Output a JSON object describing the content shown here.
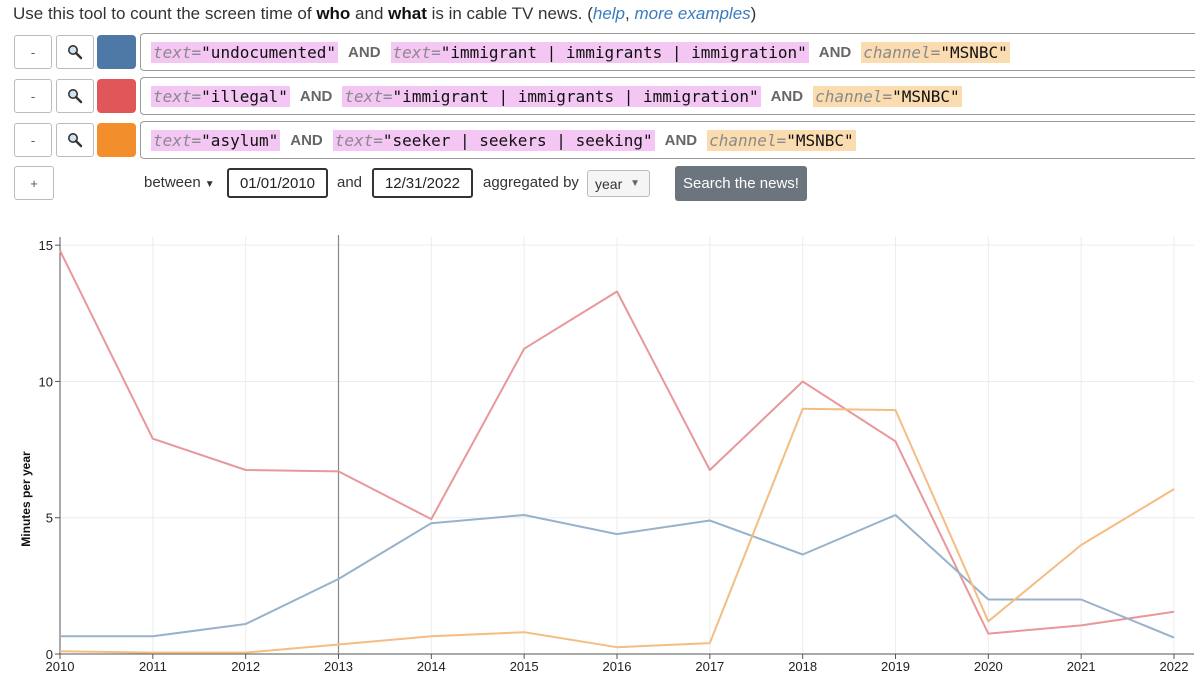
{
  "intro": {
    "prefix": "Use this tool to count the screen time of ",
    "who": "who",
    "middle1": " and ",
    "what": "what",
    "middle2": " is in cable TV news. (",
    "help_link": "help",
    "sep": ", ",
    "examples_link": "more examples",
    "suffix": ")"
  },
  "controls": {
    "minus": "-",
    "plus": "+",
    "and_op": "AND"
  },
  "queries": [
    {
      "color": "#4e79a7",
      "terms": [
        {
          "type": "text",
          "key": "text=",
          "value": "\"undocumented\""
        },
        {
          "type": "text",
          "key": "text=",
          "value": "\"immigrant | immigrants | immigration\""
        },
        {
          "type": "channel",
          "key": "channel=",
          "value": "\"MSNBC\""
        }
      ]
    },
    {
      "color": "#e15759",
      "terms": [
        {
          "type": "text",
          "key": "text=",
          "value": "\"illegal\""
        },
        {
          "type": "text",
          "key": "text=",
          "value": "\"immigrant | immigrants | immigration\""
        },
        {
          "type": "channel",
          "key": "channel=",
          "value": "\"MSNBC\""
        }
      ]
    },
    {
      "color": "#f28e2b",
      "terms": [
        {
          "type": "text",
          "key": "text=",
          "value": "\"asylum\""
        },
        {
          "type": "text",
          "key": "text=",
          "value": "\"seeker | seekers | seeking\""
        },
        {
          "type": "channel",
          "key": "channel=",
          "value": "\"MSNBC\""
        }
      ]
    }
  ],
  "daterange": {
    "between_label": "between",
    "start": "01/01/2010",
    "and_label": "and",
    "end": "12/31/2022",
    "agg_label": "aggregated by",
    "agg_value": "year",
    "search_button": "Search the news!"
  },
  "chart_data": {
    "type": "line",
    "ylabel": "Minutes per year",
    "xlabel": "",
    "ylim": [
      0,
      15.3
    ],
    "yticks": [
      0,
      5,
      10,
      15
    ],
    "x": [
      2010,
      2011,
      2012,
      2013,
      2014,
      2015,
      2016,
      2017,
      2018,
      2019,
      2020,
      2021,
      2022
    ],
    "grid": true,
    "cursor_x": 2013,
    "series": [
      {
        "color": "#e8989a",
        "values": [
          14.8,
          7.9,
          6.75,
          6.7,
          4.95,
          11.2,
          13.3,
          6.75,
          10.0,
          7.8,
          0.75,
          1.05,
          1.55
        ]
      },
      {
        "color": "#98b2ca",
        "values": [
          0.65,
          0.65,
          1.1,
          2.75,
          4.8,
          5.1,
          4.4,
          4.9,
          3.65,
          5.1,
          2.0,
          2.0,
          0.6
        ]
      },
      {
        "color": "#f4bd84",
        "values": [
          0.1,
          0.05,
          0.05,
          0.35,
          0.65,
          0.8,
          0.25,
          0.4,
          9.0,
          8.95,
          1.2,
          4.0,
          6.05
        ]
      }
    ]
  }
}
